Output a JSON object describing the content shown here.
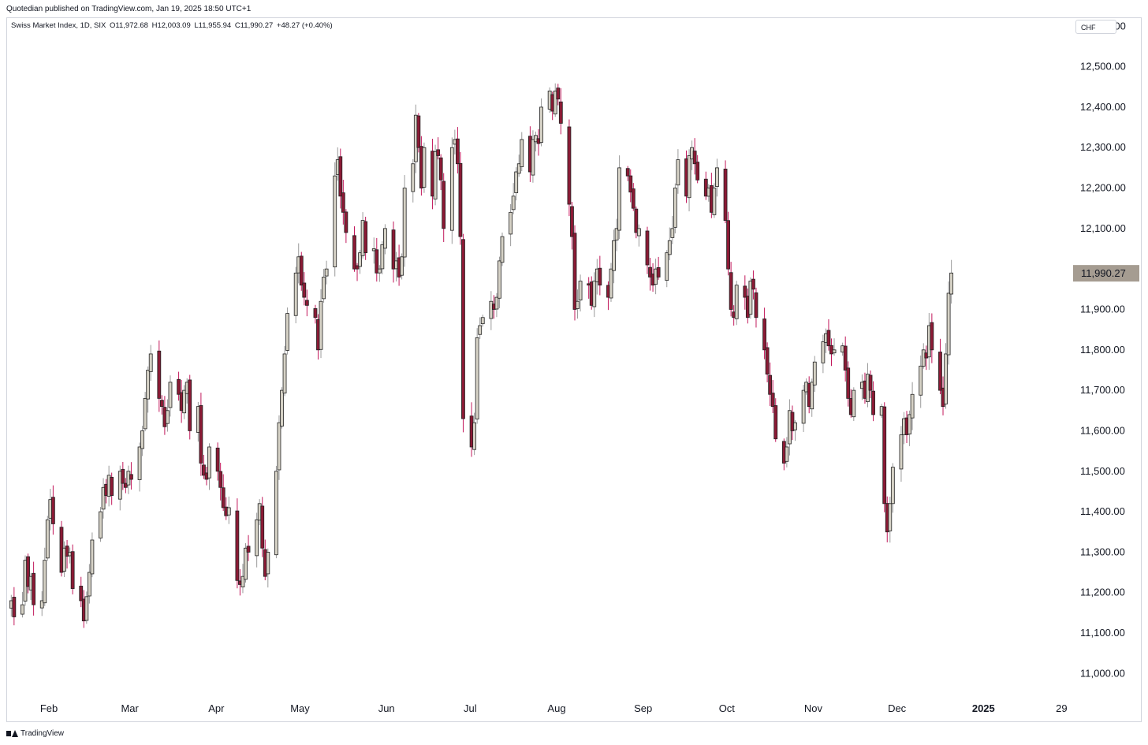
{
  "publish_note": "Quotedian published on TradingView.com, Jan 19, 2025 18:50 UTC+1",
  "legend": {
    "symbol": "Swiss Market Index, 1D, SIX",
    "open": "O11,972.68",
    "high": "H12,003.09",
    "low": "L11,955.94",
    "close": "C11,990.27",
    "change": "+48.27 (+0.40%)"
  },
  "currency": "CHF",
  "footer_brand": "TradingView",
  "colors": {
    "up_fill": "#d6d2c6",
    "down_fill": "#8b1a35",
    "outline": "#222222",
    "up_wick": "#9a9a9a",
    "down_wick": "#c2185b",
    "last_badge": "#a59c91"
  },
  "chart_data": {
    "type": "candlestick",
    "ylim": [
      10950,
      12620
    ],
    "yticks": [
      11000,
      11100,
      11200,
      11300,
      11400,
      11500,
      11600,
      11700,
      11800,
      11900,
      12000,
      12100,
      12200,
      12300,
      12400,
      12500,
      12600
    ],
    "ytick_labels": [
      "11,000.00",
      "11,100.00",
      "11,200.00",
      "11,300.00",
      "11,400.00",
      "11,500.00",
      "11,600.00",
      "11,700.00",
      "11,800.00",
      "11,900.00",
      "",
      "12,100.00",
      "12,200.00",
      "12,300.00",
      "12,400.00",
      "12,500.00",
      "12,600.00"
    ],
    "last_price_label": "11,990.27",
    "last_price": 11990.27,
    "xlim": [
      "2024-01-17",
      "2025-02-01"
    ],
    "xticks": [
      {
        "date": "2024-02-01",
        "label": "Feb"
      },
      {
        "date": "2024-03-01",
        "label": "Mar"
      },
      {
        "date": "2024-04-01",
        "label": "Apr"
      },
      {
        "date": "2024-05-01",
        "label": "May"
      },
      {
        "date": "2024-06-01",
        "label": "Jun"
      },
      {
        "date": "2024-07-01",
        "label": "Jul"
      },
      {
        "date": "2024-08-01",
        "label": "Aug"
      },
      {
        "date": "2024-09-01",
        "label": "Sep"
      },
      {
        "date": "2024-10-01",
        "label": "Oct"
      },
      {
        "date": "2024-11-01",
        "label": "Nov"
      },
      {
        "date": "2024-12-01",
        "label": "Dec"
      },
      {
        "date": "2025-01-01",
        "label": "2025",
        "bold": true
      },
      {
        "date": "2025-01-29",
        "label": "29"
      }
    ],
    "start_date": "2024-01-18",
    "end_date": "2025-01-17",
    "closes": [
      11180,
      11140,
      11170,
      11280,
      11215,
      11240,
      11170,
      11180,
      11280,
      11380,
      11430,
      11370,
      11250,
      11310,
      11290,
      11300,
      11210,
      11180,
      11130,
      11190,
      11250,
      11330,
      11400,
      11460,
      11440,
      11490,
      11440,
      11500,
      11470,
      11460,
      11500,
      11480,
      11560,
      11600,
      11680,
      11750,
      11790,
      11680,
      11660,
      11610,
      11650,
      11720,
      11690,
      11650,
      11700,
      11720,
      11600,
      11660,
      11520,
      11490,
      11480,
      11560,
      11500,
      11460,
      11410,
      11390,
      11410,
      11230,
      11220,
      11240,
      11310,
      11300,
      11380,
      11420,
      11310,
      11240,
      11300,
      11500,
      11620,
      11700,
      11790,
      11890,
      11990,
      12030,
      11960,
      11930,
      11910,
      11880,
      11800,
      11920,
      11980,
      12000,
      12230,
      12270,
      12180,
      12140,
      12090,
      12000,
      12000,
      12040,
      12120,
      12040,
      12050,
      11990,
      12000,
      12060,
      12100,
      12000,
      12020,
      11980,
      12030,
      12200,
      12260,
      12380,
      12300,
      12200,
      12300,
      12180,
      12290,
      12280,
      12220,
      12100,
      12300,
      12320,
      12260,
      12080,
      11630,
      11560,
      11620,
      11830,
      11860,
      11880,
      11920,
      11900,
      11930,
      12020,
      12080,
      12140,
      12180,
      12240,
      12260,
      12320,
      12240,
      12320,
      12330,
      12310,
      12400,
      12440,
      12390,
      12440,
      12420,
      12360,
      12160,
      12080,
      11900,
      11920,
      11970,
      11960,
      11910,
      11970,
      12000,
      11960,
      11930,
      12000,
      12070,
      12100,
      12250,
      12230,
      12190,
      12150,
      12090,
      12100,
      12010,
      11980,
      11960,
      12000,
      11980,
      12040,
      12070,
      12100,
      12200,
      12270,
      12180,
      12280,
      12300,
      12260,
      12220,
      12180,
      12200,
      12140,
      12200,
      12250,
      12120,
      12000,
      11900,
      11880,
      11960,
      11930,
      11880,
      11970,
      11950,
      11880,
      11800,
      11740,
      11690,
      11660,
      11580,
      11520,
      11560,
      11650,
      11600,
      11620,
      11700,
      11720,
      11660,
      11720,
      11770,
      11820,
      11840,
      11810,
      11790,
      11800,
      11810,
      11750,
      11680,
      11640,
      11700,
      11720,
      11680,
      11740,
      11700,
      11640,
      11660,
      11420,
      11350,
      11420,
      11510,
      11590,
      11630,
      11590,
      11640,
      11690,
      11760,
      11800,
      11780,
      11860,
      11800,
      11700,
      11660,
      11790,
      11940,
      11990
    ]
  }
}
